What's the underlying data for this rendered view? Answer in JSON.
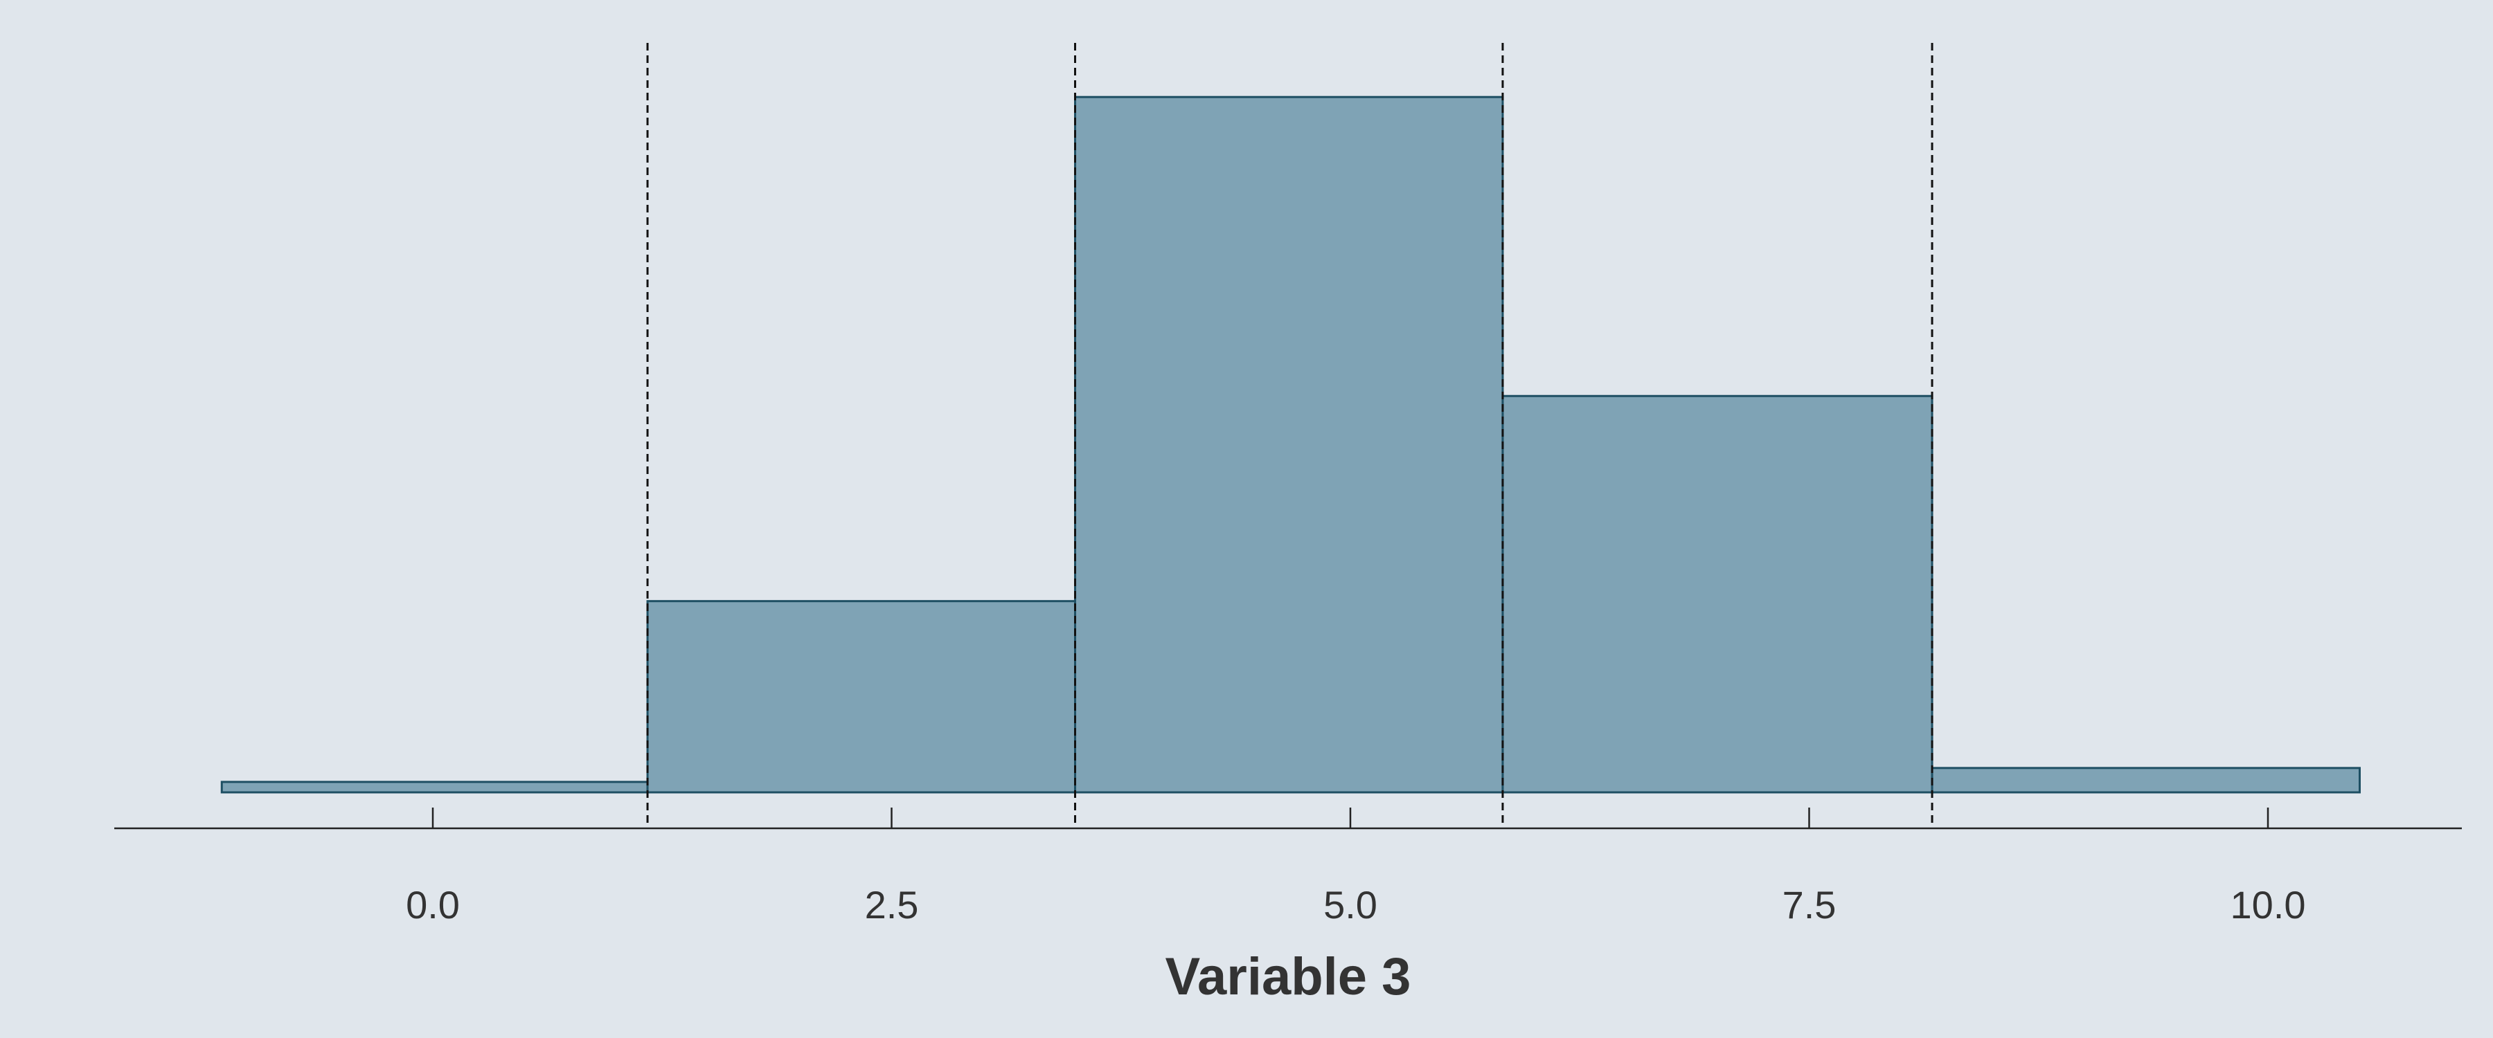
{
  "chart_data": {
    "type": "bar",
    "subtype": "histogram",
    "xlabel": "Variable 3",
    "ylabel": "",
    "title": "",
    "xlim": [
      -1.3,
      11.5
    ],
    "x_ticks": [
      {
        "value": 0.0,
        "label": "0.0"
      },
      {
        "value": 2.5,
        "label": "2.5"
      },
      {
        "value": 5.0,
        "label": "5.0"
      },
      {
        "value": 7.5,
        "label": "7.5"
      },
      {
        "value": 10.0,
        "label": "10.0"
      }
    ],
    "bins": [
      {
        "start": -1.15,
        "end": 1.17,
        "value": 1.5
      },
      {
        "start": 1.17,
        "end": 3.5,
        "value": 27.5
      },
      {
        "start": 3.5,
        "end": 5.83,
        "value": 100
      },
      {
        "start": 5.83,
        "end": 8.17,
        "value": 57
      },
      {
        "start": 8.17,
        "end": 10.5,
        "value": 3.5
      }
    ],
    "ylim": [
      0,
      104
    ],
    "reference_lines_x": [
      1.17,
      3.5,
      5.83,
      8.17
    ],
    "reference_line_style": "dashed",
    "y_axis_visible": false,
    "grid": false,
    "legend": "none"
  },
  "colors": {
    "background": "#e0e6ec",
    "bar_fill": "#7fa3b5",
    "bar_stroke": "#1e4f63",
    "reference_line": "#111111",
    "text": "#333333"
  }
}
